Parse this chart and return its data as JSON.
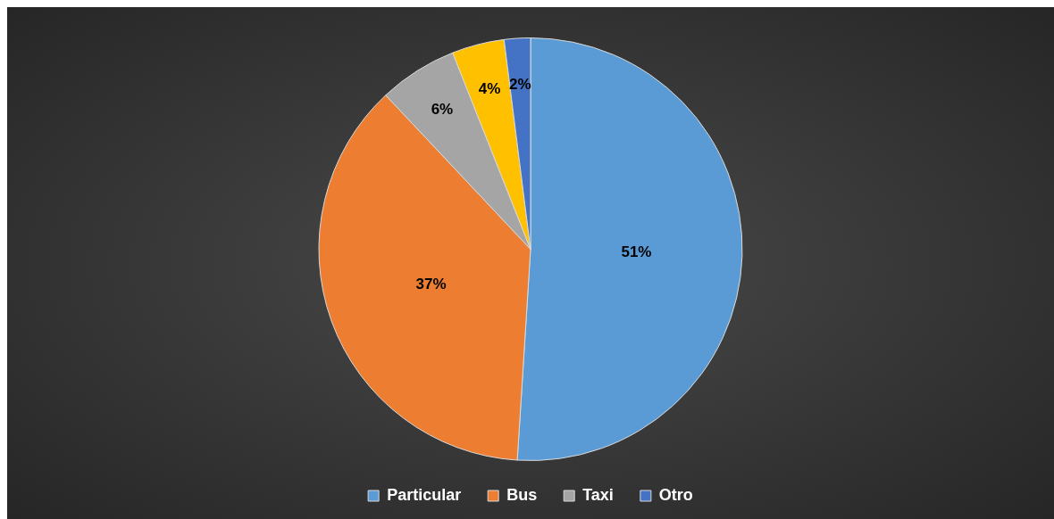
{
  "chart_data": {
    "type": "pie",
    "categories": [
      "Particular",
      "Bus",
      "Taxi",
      null,
      "Otro"
    ],
    "values": [
      51,
      37,
      6,
      4,
      2
    ],
    "colors": [
      "#5b9bd5",
      "#ed7d31",
      "#a5a5a5",
      "#ffc000",
      "#4472c4"
    ],
    "value_labels": [
      "51%",
      "37%",
      "6%",
      "4%",
      "2%"
    ],
    "legend": "bottom"
  }
}
